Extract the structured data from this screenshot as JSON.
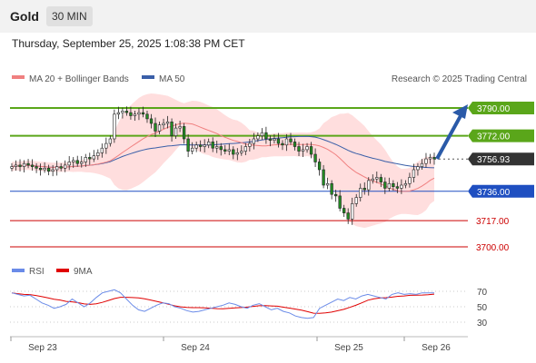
{
  "header": {
    "symbol": "Gold",
    "interval": "30 MIN"
  },
  "timestamp": "Thursday, September 25, 2025 1:08:38 PM CET",
  "legend": {
    "ma20": {
      "label": "MA 20 + Bollinger Bands",
      "color": "#f08080"
    },
    "ma50": {
      "label": "MA 50",
      "color": "#3a5fa8"
    },
    "credit": "Research © 2025 Trading Central"
  },
  "rsi_legend": {
    "rsi": {
      "label": "RSI",
      "color": "#6a8be8"
    },
    "ma9": {
      "label": "9MA",
      "color": "#e00000"
    }
  },
  "colors": {
    "green": "#5aa61a",
    "blue": "#1f4fc1",
    "red": "#cc0000",
    "candle": "#228b22",
    "band": "#ffd6d6"
  },
  "chart_data": {
    "type": "candlestick",
    "instrument": "Gold",
    "timeframe": "30 MIN",
    "x_labels": [
      "Sep 23",
      "Sep 24",
      "Sep 25",
      "Sep 26"
    ],
    "y_range": [
      3690,
      3800
    ],
    "current_price": 3756.93,
    "levels": [
      {
        "value": 3790.0,
        "label": "3790.00",
        "kind": "resistance"
      },
      {
        "value": 3772.0,
        "label": "3772.00",
        "kind": "resistance"
      },
      {
        "value": 3756.93,
        "label": "3756.93",
        "kind": "price"
      },
      {
        "value": 3736.0,
        "label": "3736.00",
        "kind": "pivot"
      },
      {
        "value": 3717.0,
        "label": "3717.00",
        "kind": "support"
      },
      {
        "value": 3700.0,
        "label": "3700.00",
        "kind": "support"
      }
    ],
    "closes": [
      3752,
      3753,
      3752,
      3754,
      3753,
      3752,
      3751,
      3750,
      3751,
      3749,
      3750,
      3752,
      3751,
      3753,
      3755,
      3756,
      3754,
      3755,
      3758,
      3757,
      3759,
      3761,
      3764,
      3767,
      3770,
      3786,
      3787,
      3788,
      3787,
      3785,
      3786,
      3787,
      3786,
      3783,
      3780,
      3775,
      3779,
      3780,
      3781,
      3772,
      3777,
      3778,
      3770,
      3762,
      3764,
      3766,
      3765,
      3766,
      3768,
      3764,
      3765,
      3763,
      3762,
      3763,
      3760,
      3761,
      3762,
      3765,
      3767,
      3770,
      3772,
      3774,
      3770,
      3769,
      3770,
      3767,
      3766,
      3770,
      3768,
      3765,
      3762,
      3763,
      3765,
      3760,
      3755,
      3750,
      3740,
      3741,
      3734,
      3733,
      3725,
      3722,
      3718,
      3728,
      3732,
      3738,
      3737,
      3743,
      3744,
      3745,
      3742,
      3738,
      3741,
      3739,
      3738,
      3740,
      3741,
      3745,
      3750,
      3752,
      3754,
      3757,
      3758,
      3757
    ],
    "rsi": {
      "ticks": [
        30,
        50,
        70
      ],
      "values": [
        68,
        66,
        64,
        65,
        60,
        55,
        52,
        48,
        50,
        53,
        60,
        55,
        50,
        55,
        62,
        68,
        70,
        72,
        68,
        60,
        52,
        46,
        44,
        48,
        52,
        55,
        54,
        50,
        48,
        45,
        43,
        44,
        46,
        48,
        50,
        52,
        55,
        53,
        50,
        48,
        52,
        54,
        50,
        46,
        48,
        44,
        42,
        38,
        36,
        35,
        36,
        48,
        52,
        56,
        60,
        58,
        62,
        60,
        64,
        66,
        64,
        62,
        60,
        66,
        68,
        66,
        67,
        66,
        68,
        68,
        68
      ]
    }
  }
}
